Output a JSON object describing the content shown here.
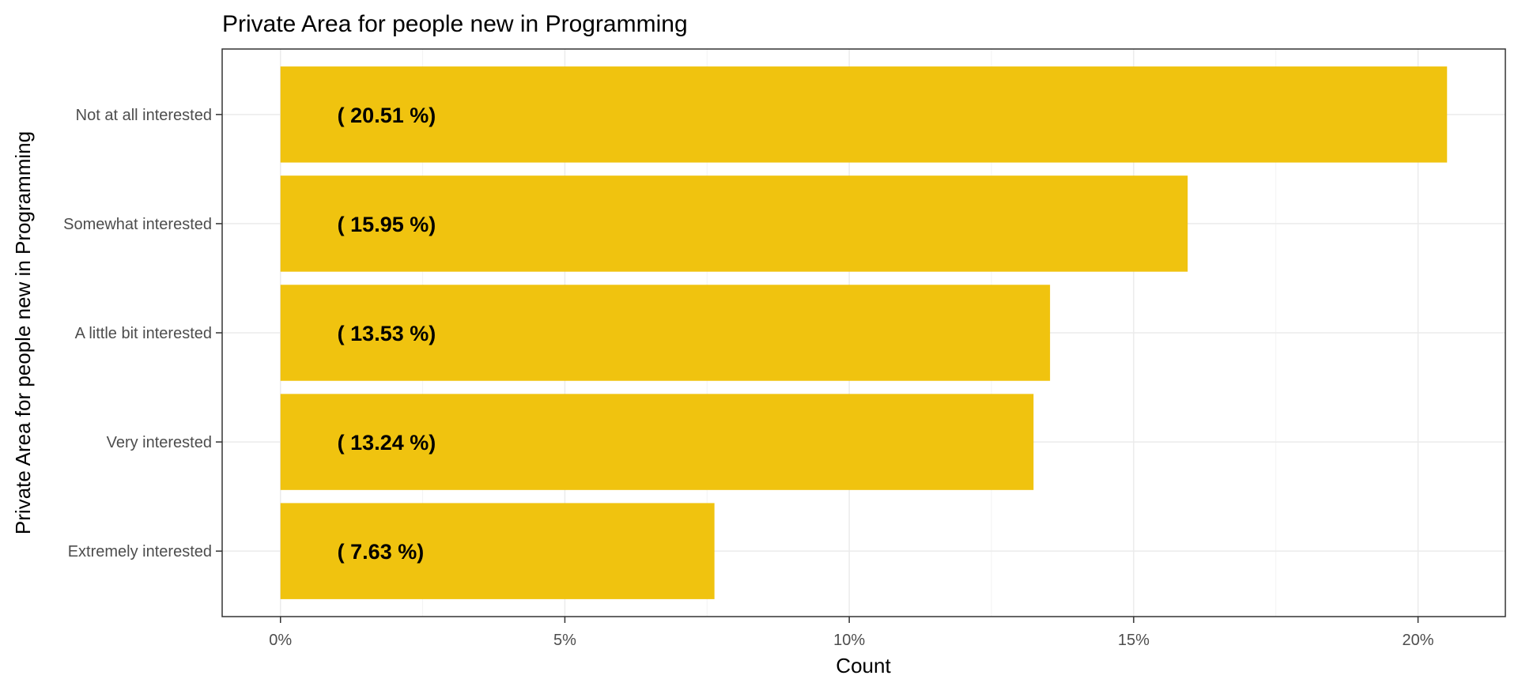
{
  "chart_data": {
    "type": "bar",
    "orientation": "horizontal",
    "title": "Private Area for people new in Programming",
    "xlabel": "Count",
    "ylabel": "Private Area for people new in Programming",
    "categories": [
      "Not at all interested",
      "Somewhat interested",
      "A little bit interested",
      "Very interested",
      "Extremely interested"
    ],
    "values": [
      20.51,
      15.95,
      13.53,
      13.24,
      7.63
    ],
    "labels": [
      "( 20.51 %)",
      "( 15.95 %)",
      "( 13.53 %)",
      "( 13.24 %)",
      "( 7.63 %)"
    ],
    "x_ticks": [
      0,
      5,
      10,
      15,
      20
    ],
    "x_tick_labels": [
      "0%",
      "5%",
      "10%",
      "15%",
      "20%"
    ],
    "xlim": [
      -1.025,
      21.535
    ],
    "bar_color": "#F0C30F",
    "grid": true,
    "legend": "none"
  }
}
